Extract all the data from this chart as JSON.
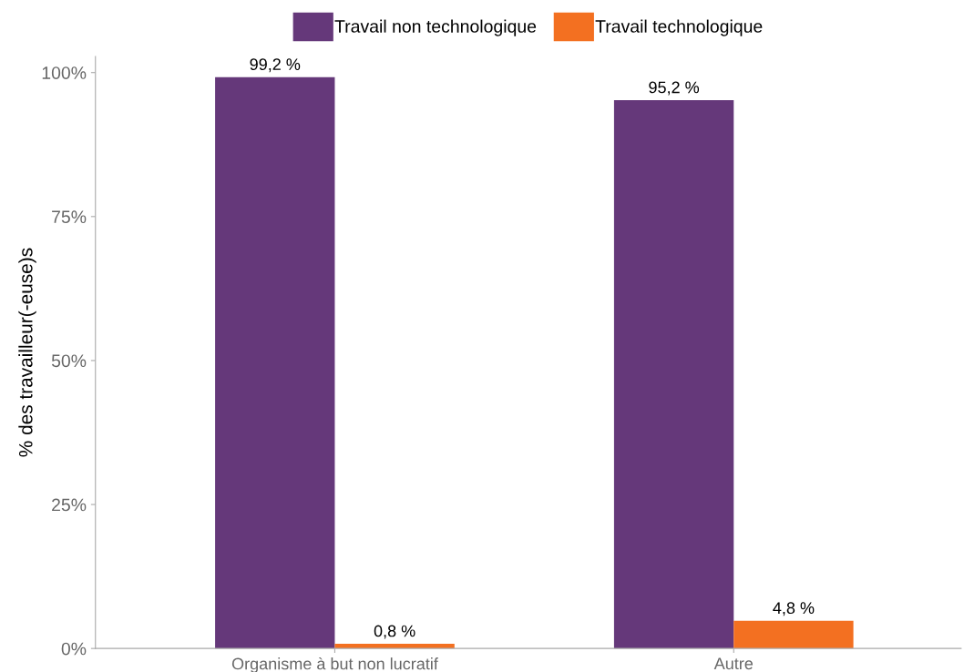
{
  "chart_data": {
    "type": "bar",
    "ylabel": "% des travailleur(-euse)s",
    "categories": [
      "Organisme à but non lucratif",
      "Autre"
    ],
    "series": [
      {
        "name": "Travail non technologique",
        "color": "#65387a",
        "values": [
          99.2,
          95.2
        ],
        "value_labels": [
          "99,2 %",
          "95,2 %"
        ]
      },
      {
        "name": "Travail technologique",
        "color": "#f37021",
        "values": [
          0.8,
          4.8
        ],
        "value_labels": [
          "0,8 %",
          "4,8 %"
        ]
      }
    ],
    "ylim": [
      0,
      102.8
    ],
    "yticks": [
      {
        "value": 0,
        "label": "0%"
      },
      {
        "value": 25,
        "label": "25%"
      },
      {
        "value": 50,
        "label": "50%"
      },
      {
        "value": 75,
        "label": "75%"
      },
      {
        "value": 100,
        "label": "100%"
      }
    ],
    "grid": false,
    "legend": "top"
  }
}
